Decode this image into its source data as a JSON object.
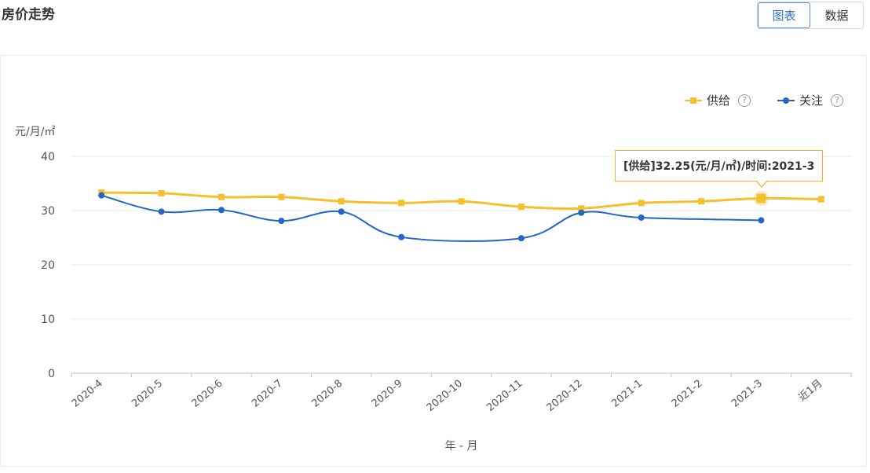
{
  "page": {
    "title": "房价走势"
  },
  "view_toggle": {
    "chart_label": "图表",
    "data_label": "数据",
    "active": "chart"
  },
  "legend": {
    "help_symbol": "?",
    "items": [
      {
        "name": "供给",
        "color": "#f5c02e"
      },
      {
        "name": "关注",
        "color": "#2166c8"
      }
    ]
  },
  "tooltip": {
    "text": "[供给]32.25(元/月/㎡)/时间:2021-3"
  },
  "chart_data": {
    "type": "line",
    "title": "房价走势",
    "ylabel": "元/月/㎡",
    "xlabel": "年 - 月",
    "ylim": [
      0,
      40
    ],
    "yticks": [
      0,
      10,
      20,
      30,
      40
    ],
    "grid": true,
    "legend_position": "top-right",
    "categories": [
      "2020-4",
      "2020-5",
      "2020-6",
      "2020-7",
      "2020-8",
      "2020-9",
      "2020-10",
      "2020-11",
      "2020-12",
      "2021-1",
      "2021-2",
      "2021-3",
      "近1月"
    ],
    "series": [
      {
        "name": "供给",
        "color": "#f5c02e",
        "values": [
          33.3,
          33.2,
          32.5,
          32.5,
          31.7,
          31.4,
          31.7,
          30.7,
          30.4,
          31.4,
          31.7,
          32.25,
          32.1
        ]
      },
      {
        "name": "关注",
        "color": "#2166c8",
        "values": [
          32.8,
          29.8,
          30.1,
          28.1,
          29.8,
          25.1,
          null,
          24.9,
          29.6,
          28.7,
          null,
          28.2,
          null
        ]
      }
    ],
    "highlight": {
      "series": "供给",
      "category": "2021-3"
    }
  }
}
